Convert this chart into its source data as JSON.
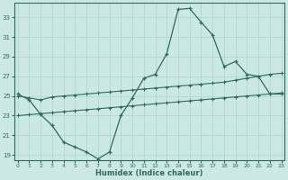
{
  "xlabel": "Humidex (Indice chaleur)",
  "x_values": [
    0,
    1,
    2,
    3,
    4,
    5,
    6,
    7,
    8,
    9,
    10,
    11,
    12,
    13,
    14,
    15,
    16,
    17,
    18,
    19,
    20,
    21,
    22,
    23
  ],
  "line1_y": [
    25.2,
    24.6,
    23.1,
    22.0,
    20.3,
    19.8,
    19.3,
    18.6,
    19.3,
    23.0,
    24.8,
    26.8,
    27.2,
    29.3,
    33.8,
    33.9,
    32.5,
    31.2,
    28.0,
    28.5,
    27.2,
    27.0,
    25.2,
    25.2
  ],
  "line2_y": [
    25.0,
    24.8,
    24.6,
    24.9,
    25.0,
    25.1,
    25.2,
    25.3,
    25.4,
    25.5,
    25.6,
    25.7,
    25.8,
    25.9,
    26.0,
    26.1,
    26.2,
    26.3,
    26.4,
    26.6,
    26.8,
    27.0,
    27.2,
    27.3
  ],
  "line3_y": [
    23.0,
    23.1,
    23.2,
    23.3,
    23.4,
    23.5,
    23.6,
    23.7,
    23.8,
    23.9,
    24.0,
    24.1,
    24.2,
    24.3,
    24.4,
    24.5,
    24.6,
    24.7,
    24.8,
    24.9,
    25.0,
    25.1,
    25.2,
    25.3
  ],
  "line_color": "#2e6b5e",
  "bg_color": "#cce8e4",
  "grid_color": "#aad4d0",
  "ylim": [
    18.5,
    34.5
  ],
  "yticks": [
    19,
    21,
    23,
    25,
    27,
    29,
    31,
    33
  ],
  "xlim": [
    -0.3,
    23.3
  ],
  "xticks": [
    0,
    1,
    2,
    3,
    4,
    5,
    6,
    7,
    8,
    9,
    10,
    11,
    12,
    13,
    14,
    15,
    16,
    17,
    18,
    19,
    20,
    21,
    22,
    23
  ]
}
